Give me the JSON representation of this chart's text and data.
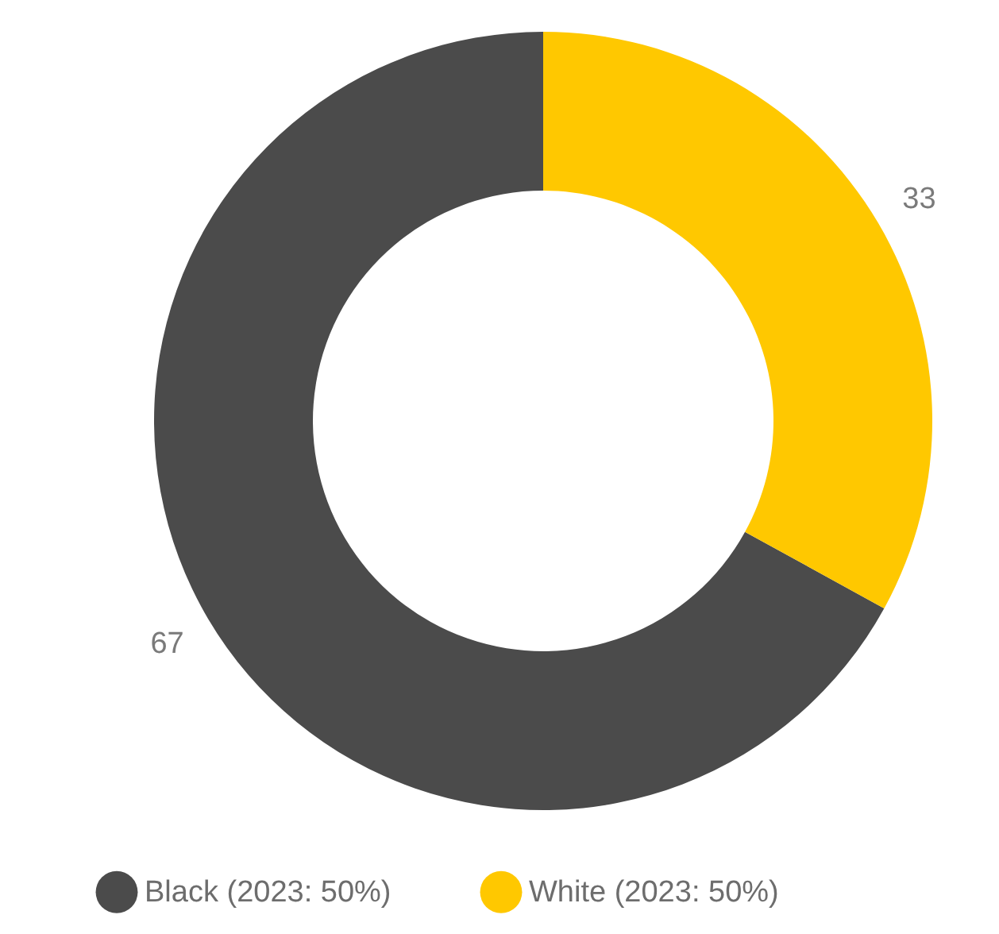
{
  "chart_data": {
    "type": "donut",
    "categories": [
      "Black (2023: 50%)",
      "White (2023: 50%)"
    ],
    "values": [
      67,
      33
    ],
    "colors": [
      "#4b4b4b",
      "#ffc800"
    ],
    "data_labels": true,
    "legend": "bottom"
  }
}
